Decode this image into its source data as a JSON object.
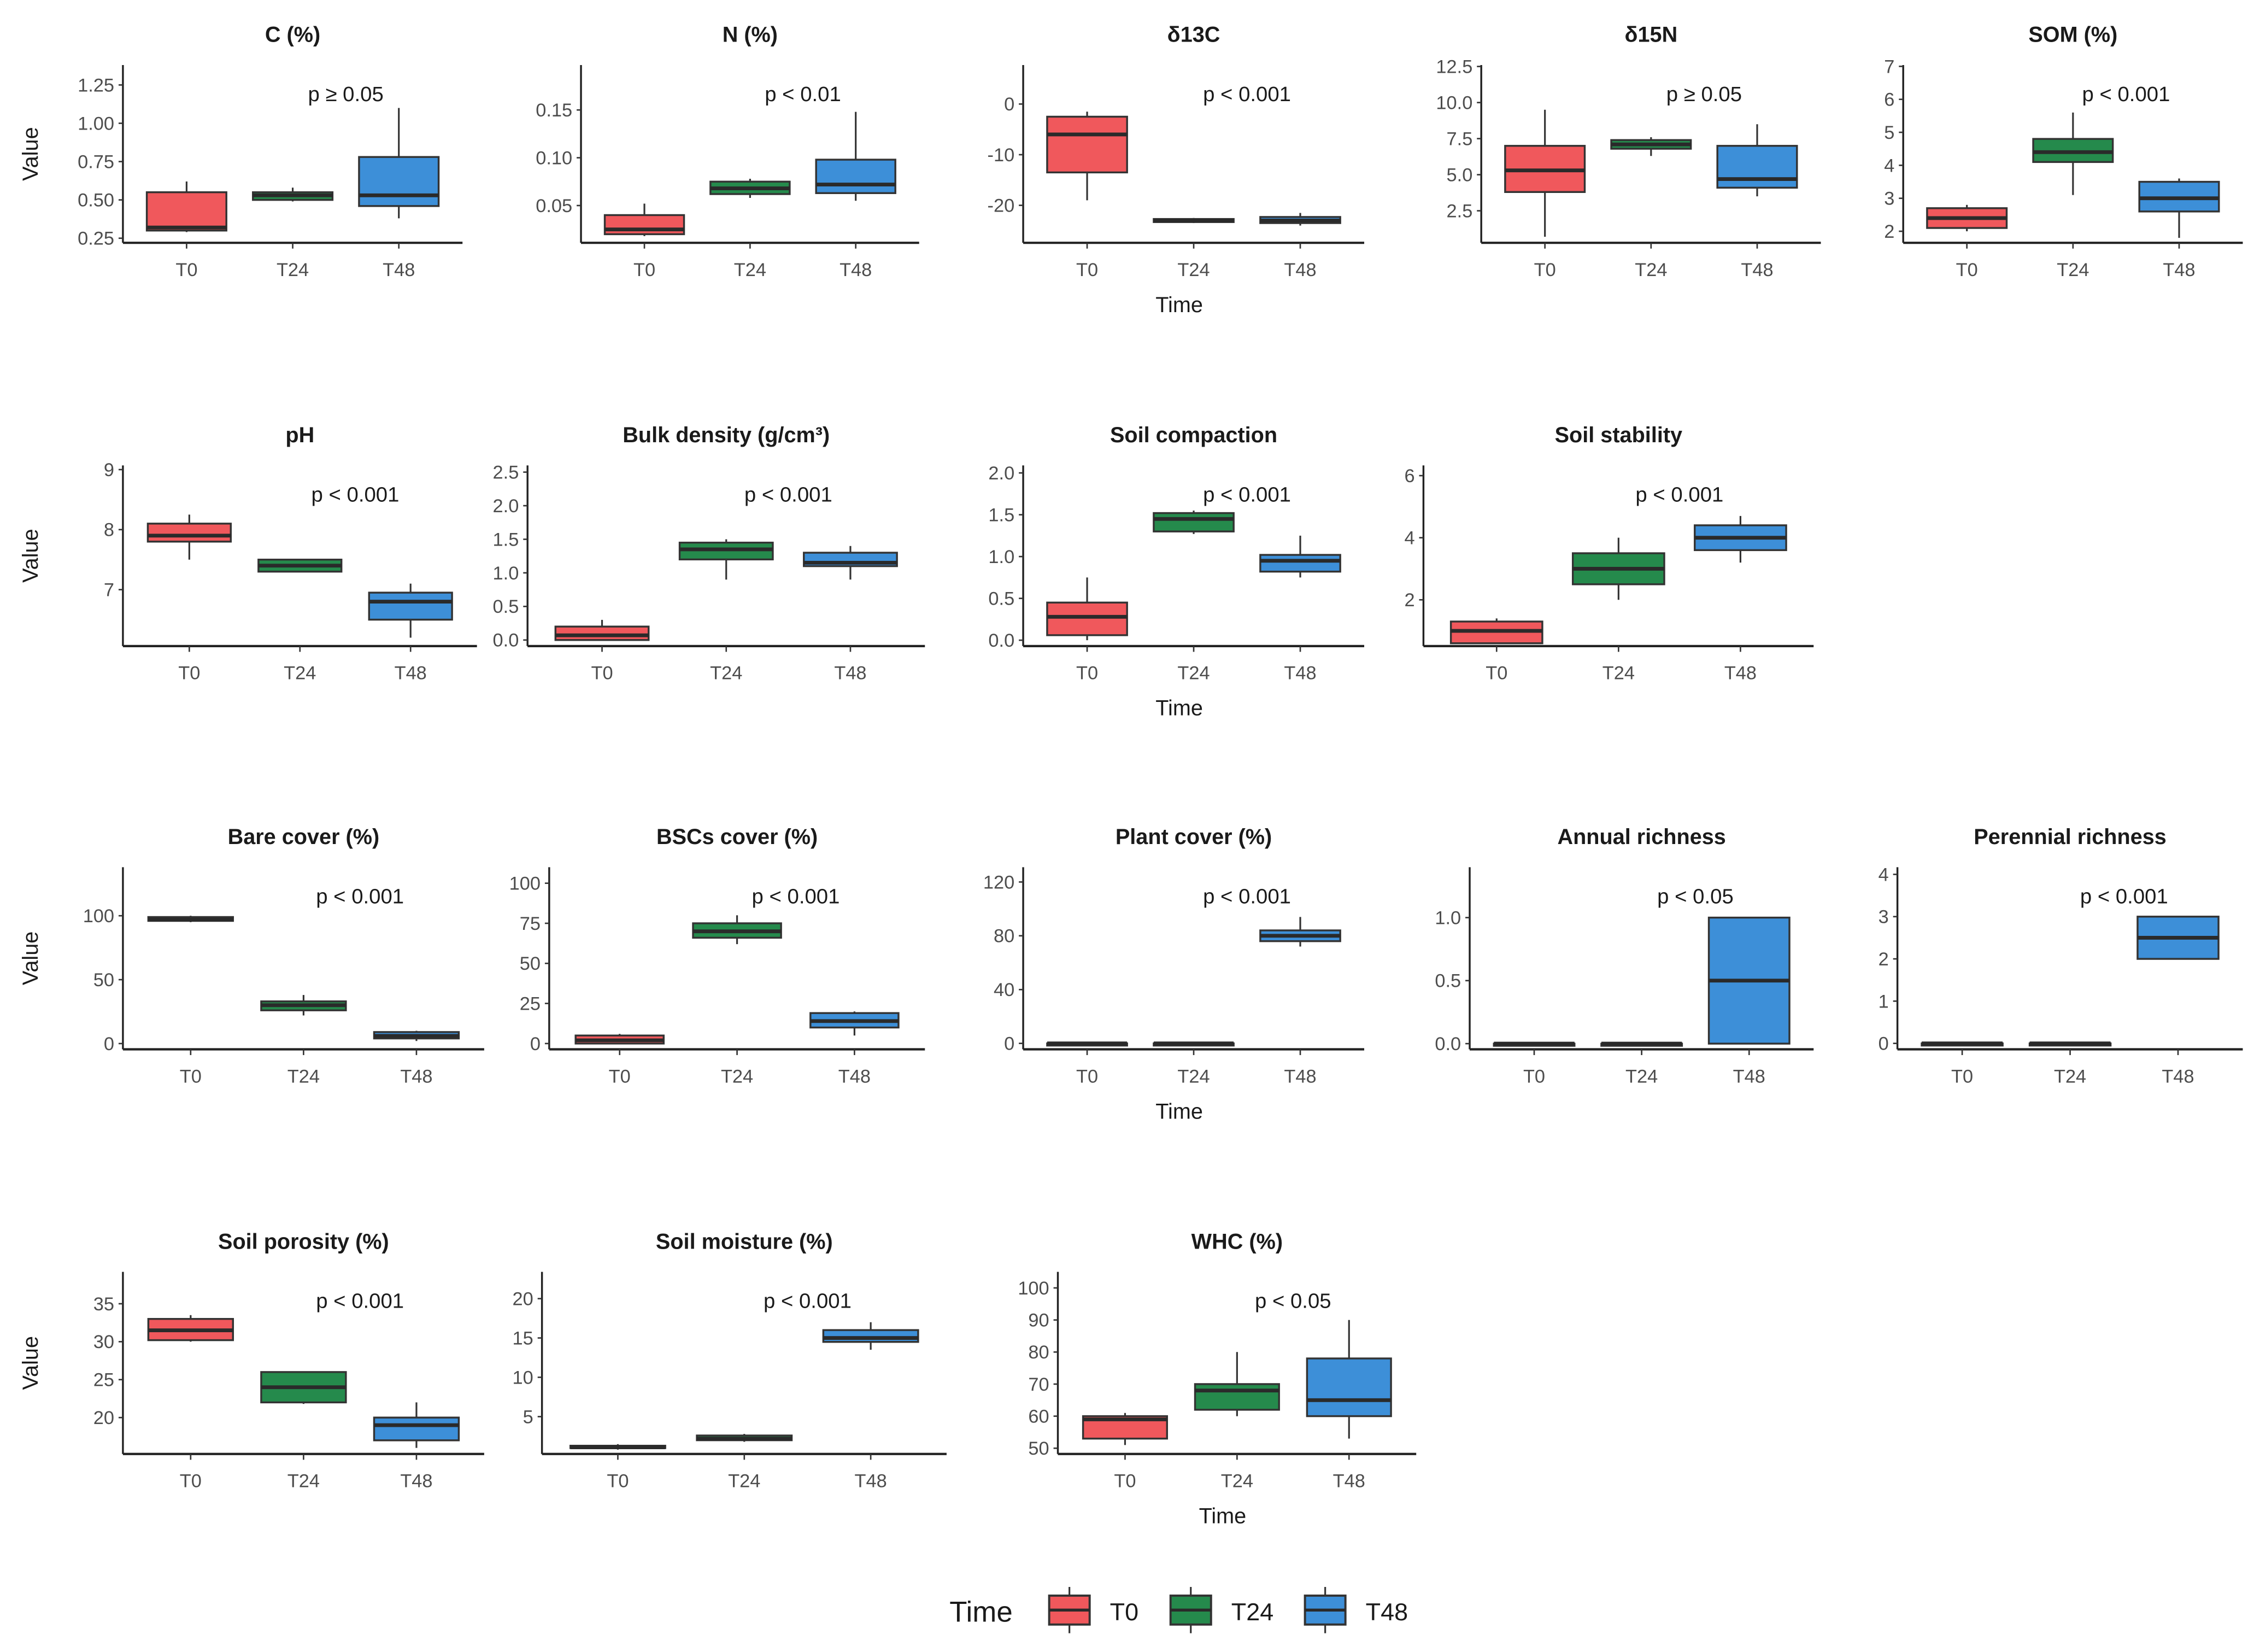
{
  "chart_data": {
    "type": "boxplot",
    "x_categories": [
      "T0",
      "T24",
      "T48"
    ],
    "xlabel": "Time",
    "ylabel": "Value",
    "legend": {
      "title": "Time",
      "position": "bottom",
      "entries": [
        "T0",
        "T24",
        "T48"
      ]
    },
    "colors": {
      "T0": "#f0585c",
      "T24": "#258a4c",
      "T48": "#3d8fd8",
      "outline": "#333333"
    },
    "panels": [
      {
        "title": "C (%)",
        "annotation": "p ≥ 0.05",
        "ylim": [
          0.22,
          1.38
        ],
        "yticks": [
          0.25,
          0.5,
          0.75,
          1.0,
          1.25
        ],
        "tick_labels": [
          "0.25",
          "0.50",
          "0.75",
          "1.00",
          "1.25"
        ],
        "boxes": [
          [
            0.29,
            0.3,
            0.32,
            0.55,
            0.62
          ],
          [
            0.49,
            0.5,
            0.53,
            0.55,
            0.58
          ],
          [
            0.38,
            0.46,
            0.53,
            0.78,
            1.1
          ]
        ]
      },
      {
        "title": "N (%)",
        "annotation": "p < 0.01",
        "ylim": [
          0.011,
          0.197
        ],
        "yticks": [
          0.05,
          0.1,
          0.15
        ],
        "tick_labels": [
          "0.05",
          "0.10",
          "0.15"
        ],
        "boxes": [
          [
            0.018,
            0.02,
            0.025,
            0.04,
            0.052
          ],
          [
            0.058,
            0.062,
            0.068,
            0.075,
            0.078
          ],
          [
            0.055,
            0.063,
            0.072,
            0.098,
            0.148
          ]
        ]
      },
      {
        "title": "δ13C",
        "annotation": "p < 0.001",
        "ylim": [
          -27.4,
          7.7
        ],
        "yticks": [
          -20,
          -10,
          0
        ],
        "tick_labels": [
          "-20",
          "-10",
          "0"
        ],
        "boxes": [
          [
            -19,
            -13.5,
            -6,
            -2.5,
            -1.5
          ],
          [
            -23.5,
            -23.3,
            -23,
            -22.7,
            -22.5
          ],
          [
            -24,
            -23.5,
            -23,
            -22.3,
            -21.5
          ]
        ]
      },
      {
        "title": "δ15N",
        "annotation": "p ≥ 0.05",
        "ylim": [
          0.28,
          12.6
        ],
        "yticks": [
          2.5,
          5,
          7.5,
          10,
          12.5
        ],
        "tick_labels": [
          "2.5",
          "5.0",
          "7.5",
          "10.0",
          "12.5"
        ],
        "boxes": [
          [
            0.7,
            3.8,
            5.3,
            7.0,
            9.5
          ],
          [
            6.3,
            6.8,
            7.1,
            7.4,
            7.6
          ],
          [
            3.5,
            4.1,
            4.7,
            7.0,
            8.5
          ]
        ]
      },
      {
        "title": "SOM (%)",
        "annotation": "p < 0.001",
        "ylim": [
          1.65,
          7.04
        ],
        "yticks": [
          2,
          3,
          4,
          5,
          6,
          7
        ],
        "tick_labels": [
          "2",
          "3",
          "4",
          "5",
          "6",
          "7"
        ],
        "boxes": [
          [
            2.0,
            2.1,
            2.4,
            2.7,
            2.8
          ],
          [
            3.1,
            4.1,
            4.4,
            4.8,
            5.6
          ],
          [
            1.8,
            2.6,
            3.0,
            3.5,
            3.6
          ]
        ]
      },
      {
        "title": "pH",
        "annotation": "p < 0.001",
        "ylim": [
          6.06,
          9.07
        ],
        "yticks": [
          7,
          8,
          9
        ],
        "tick_labels": [
          "7",
          "8",
          "9"
        ],
        "boxes": [
          [
            7.5,
            7.8,
            7.9,
            8.1,
            8.25
          ],
          [
            7.3,
            7.3,
            7.4,
            7.5,
            7.5
          ],
          [
            6.2,
            6.5,
            6.8,
            6.95,
            7.1
          ]
        ]
      },
      {
        "title": "Bulk density (g/cm³)",
        "annotation": "p < 0.001",
        "ylim": [
          -0.09,
          2.6
        ],
        "yticks": [
          0,
          0.5,
          1,
          1.5,
          2,
          2.5
        ],
        "tick_labels": [
          "0.0",
          "0.5",
          "1.0",
          "1.5",
          "2.0",
          "2.5"
        ],
        "boxes": [
          [
            0,
            0,
            0.07,
            0.2,
            0.3
          ],
          [
            0.9,
            1.2,
            1.35,
            1.45,
            1.5
          ],
          [
            0.9,
            1.1,
            1.15,
            1.3,
            1.4
          ]
        ]
      },
      {
        "title": "Soil compaction",
        "annotation": "p < 0.001",
        "ylim": [
          -0.07,
          2.09
        ],
        "yticks": [
          0,
          0.5,
          1,
          1.5,
          2
        ],
        "tick_labels": [
          "0.0",
          "0.5",
          "1.0",
          "1.5",
          "2.0"
        ],
        "boxes": [
          [
            0,
            0.06,
            0.28,
            0.45,
            0.75
          ],
          [
            1.27,
            1.3,
            1.45,
            1.52,
            1.55
          ],
          [
            0.75,
            0.82,
            0.95,
            1.02,
            1.25
          ]
        ]
      },
      {
        "title": "Soil stability",
        "annotation": "p < 0.001",
        "ylim": [
          0.51,
          6.33
        ],
        "yticks": [
          2,
          4,
          6
        ],
        "tick_labels": [
          "2",
          "4",
          "6"
        ],
        "boxes": [
          [
            0.6,
            0.6,
            1.0,
            1.3,
            1.4
          ],
          [
            2.0,
            2.5,
            3.0,
            3.5,
            4.0
          ],
          [
            3.2,
            3.6,
            4.0,
            4.4,
            4.7
          ]
        ]
      },
      {
        "title": "Bare cover (%)",
        "annotation": "p < 0.001",
        "ylim": [
          -4.5,
          138
        ],
        "yticks": [
          0,
          50,
          100
        ],
        "tick_labels": [
          "0",
          "50",
          "100"
        ],
        "boxes": [
          [
            95,
            96,
            97,
            99,
            100
          ],
          [
            22,
            26,
            30,
            33,
            38
          ],
          [
            2,
            4,
            6,
            9,
            10
          ]
        ]
      },
      {
        "title": "BSCs cover (%)",
        "annotation": "p < 0.001",
        "ylim": [
          -3.6,
          110
        ],
        "yticks": [
          0,
          25,
          50,
          75,
          100
        ],
        "tick_labels": [
          "0",
          "25",
          "50",
          "75",
          "100"
        ],
        "boxes": [
          [
            0,
            0,
            2,
            5,
            6
          ],
          [
            62,
            66,
            70,
            75,
            80
          ],
          [
            5,
            10,
            14,
            19,
            20
          ]
        ]
      },
      {
        "title": "Plant cover (%)",
        "annotation": "p < 0.001",
        "ylim": [
          -4.4,
          131
        ],
        "yticks": [
          0,
          40,
          80,
          120
        ],
        "tick_labels": [
          "0",
          "40",
          "80",
          "120"
        ],
        "boxes": [
          [
            0,
            0,
            0,
            0,
            0
          ],
          [
            0,
            0,
            0,
            0,
            0
          ],
          [
            72,
            76,
            80,
            84,
            94
          ]
        ]
      },
      {
        "title": "Annual richness",
        "annotation": "p < 0.05",
        "ylim": [
          -0.045,
          1.4
        ],
        "yticks": [
          0,
          0.5,
          1
        ],
        "tick_labels": [
          "0.0",
          "0.5",
          "1.0"
        ],
        "boxes": [
          [
            0,
            0,
            0,
            0,
            0
          ],
          [
            0,
            0,
            0,
            0,
            0
          ],
          [
            0,
            0,
            0.5,
            1,
            1
          ]
        ]
      },
      {
        "title": "Perennial richness",
        "annotation": "p < 0.001",
        "ylim": [
          -0.14,
          4.17
        ],
        "yticks": [
          0,
          1,
          2,
          3,
          4
        ],
        "tick_labels": [
          "0",
          "1",
          "2",
          "3",
          "4"
        ],
        "boxes": [
          [
            0,
            0,
            0,
            0,
            0
          ],
          [
            0,
            0,
            0,
            0,
            0
          ],
          [
            2,
            2,
            2.5,
            3,
            3
          ]
        ]
      },
      {
        "title": "Soil porosity (%)",
        "annotation": "p < 0.001",
        "ylim": [
          15.2,
          39.2
        ],
        "yticks": [
          20,
          25,
          30,
          35
        ],
        "tick_labels": [
          "20",
          "25",
          "30",
          "35"
        ],
        "boxes": [
          [
            30,
            30.2,
            31.5,
            33,
            33.5
          ],
          [
            21.8,
            22,
            24,
            26,
            26
          ],
          [
            16,
            17,
            19,
            20,
            22
          ]
        ]
      },
      {
        "title": "Soil moisture (%)",
        "annotation": "p < 0.001",
        "ylim": [
          0.25,
          23.4
        ],
        "yticks": [
          5,
          10,
          15,
          20
        ],
        "tick_labels": [
          "5",
          "10",
          "15",
          "20"
        ],
        "boxes": [
          [
            0.8,
            1,
            1.1,
            1.3,
            1.5
          ],
          [
            1.8,
            2,
            2.2,
            2.6,
            2.8
          ],
          [
            13.5,
            14.5,
            15,
            16,
            17
          ]
        ]
      },
      {
        "title": "WHC (%)",
        "annotation": "p < 0.05",
        "ylim": [
          48.2,
          105
        ],
        "yticks": [
          50,
          60,
          70,
          80,
          90,
          100
        ],
        "tick_labels": [
          "50",
          "60",
          "70",
          "80",
          "90",
          "100"
        ],
        "boxes": [
          [
            51,
            53,
            59,
            60,
            61
          ],
          [
            60,
            62,
            68,
            70,
            80
          ],
          [
            53,
            60,
            65,
            78,
            90
          ]
        ]
      }
    ]
  }
}
